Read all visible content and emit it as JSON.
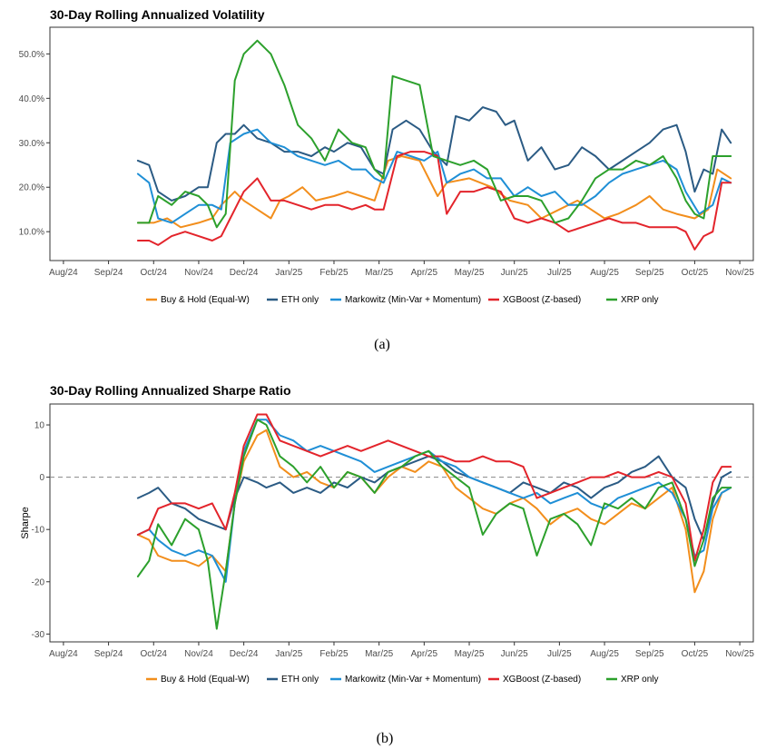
{
  "colors": {
    "buy_hold": "#f28e1c",
    "eth": "#2b5b84",
    "markowitz": "#1f8fd6",
    "xgboost": "#e3242b",
    "xrp": "#2ca02c"
  },
  "legend": [
    "Buy & Hold (Equal-W)",
    "ETH only",
    "Markowitz (Min-Var + Momentum)",
    "XGBoost (Z-based)",
    "XRP only"
  ],
  "x_months": [
    "Aug/24",
    "Sep/24",
    "Oct/24",
    "Nov/24",
    "Dec/24",
    "Jan/25",
    "Feb/25",
    "Mar/25",
    "Apr/25",
    "May/25",
    "Jun/25",
    "Jul/25",
    "Aug/25",
    "Sep/25",
    "Oct/25",
    "Nov/25"
  ],
  "chart_data": [
    {
      "type": "line",
      "title": "30-Day Rolling Annualized Volatility",
      "panel_label": "(a)",
      "xlabel": "",
      "ylabel": "",
      "xlim": [
        -0.3,
        15.3
      ],
      "ylim": [
        3.5,
        56
      ],
      "yticks": [
        10,
        20,
        30,
        40,
        50
      ],
      "ytick_labels": [
        "10.0%",
        "20.0%",
        "30.0%",
        "40.0%",
        "50.0%"
      ],
      "series": [
        {
          "name": "Buy & Hold (Equal-W)",
          "color_key": "buy_hold",
          "x": [
            1.65,
            2.0,
            2.3,
            2.6,
            3.0,
            3.3,
            3.5,
            3.8,
            4.0,
            4.3,
            4.6,
            4.8,
            5.0,
            5.3,
            5.6,
            6.0,
            6.3,
            6.6,
            6.9,
            7.2,
            7.5,
            7.9,
            8.3,
            8.5,
            9.0,
            9.5,
            9.9,
            10.3,
            10.6,
            11.0,
            11.4,
            11.7,
            12.0,
            12.3,
            12.7,
            13.0,
            13.3,
            13.6,
            14.0,
            14.3,
            14.5,
            14.8
          ],
          "y": [
            12,
            12,
            13,
            11,
            12,
            13,
            16,
            19,
            17,
            15,
            13,
            17,
            18,
            20,
            17,
            18,
            19,
            18,
            17,
            26,
            27,
            26,
            18,
            21,
            22,
            20,
            17,
            16,
            13,
            15,
            17,
            15,
            13,
            14,
            16,
            18,
            15,
            14,
            13,
            15,
            24,
            22
          ]
        },
        {
          "name": "ETH only",
          "color_key": "eth",
          "x": [
            1.65,
            1.9,
            2.1,
            2.4,
            2.7,
            3.0,
            3.2,
            3.4,
            3.6,
            3.8,
            4.0,
            4.3,
            4.6,
            4.9,
            5.2,
            5.5,
            5.8,
            6.0,
            6.3,
            6.6,
            6.9,
            7.1,
            7.3,
            7.6,
            7.9,
            8.2,
            8.5,
            8.7,
            9.0,
            9.3,
            9.6,
            9.8,
            10.0,
            10.3,
            10.6,
            10.9,
            11.2,
            11.5,
            11.8,
            12.1,
            12.4,
            12.7,
            13.0,
            13.3,
            13.6,
            13.8,
            14.0,
            14.2,
            14.4,
            14.6,
            14.8
          ],
          "y": [
            26,
            25,
            19,
            17,
            18,
            20,
            20,
            30,
            32,
            32,
            34,
            31,
            30,
            28,
            28,
            27,
            29,
            28,
            30,
            29,
            24,
            23,
            33,
            35,
            33,
            28,
            25,
            36,
            35,
            38,
            37,
            34,
            35,
            26,
            29,
            24,
            25,
            29,
            27,
            24,
            26,
            28,
            30,
            33,
            34,
            28,
            19,
            24,
            23,
            33,
            30
          ]
        },
        {
          "name": "Markowitz (Min-Var + Momentum)",
          "color_key": "markowitz",
          "x": [
            1.65,
            1.9,
            2.1,
            2.4,
            2.7,
            3.0,
            3.3,
            3.5,
            3.7,
            4.0,
            4.3,
            4.6,
            4.9,
            5.2,
            5.5,
            5.8,
            6.1,
            6.4,
            6.7,
            6.9,
            7.1,
            7.4,
            7.7,
            8.0,
            8.3,
            8.5,
            8.8,
            9.1,
            9.4,
            9.7,
            10.0,
            10.3,
            10.6,
            10.9,
            11.2,
            11.5,
            11.8,
            12.1,
            12.4,
            12.7,
            13.0,
            13.3,
            13.6,
            13.8,
            14.1,
            14.4,
            14.6,
            14.8
          ],
          "y": [
            23,
            21,
            13,
            12,
            14,
            16,
            16,
            15,
            30,
            32,
            33,
            30,
            29,
            27,
            26,
            25,
            26,
            24,
            24,
            22,
            21,
            28,
            27,
            26,
            28,
            21,
            23,
            24,
            22,
            22,
            18,
            20,
            18,
            19,
            16,
            16,
            18,
            21,
            23,
            24,
            25,
            26,
            24,
            19,
            14,
            16,
            22,
            21
          ]
        },
        {
          "name": "XGBoost (Z-based)",
          "color_key": "xgboost",
          "x": [
            1.65,
            1.9,
            2.1,
            2.4,
            2.7,
            3.0,
            3.3,
            3.5,
            3.7,
            4.0,
            4.3,
            4.6,
            4.9,
            5.2,
            5.5,
            5.8,
            6.1,
            6.4,
            6.7,
            6.9,
            7.1,
            7.4,
            7.7,
            8.0,
            8.3,
            8.5,
            8.8,
            9.1,
            9.4,
            9.7,
            10.0,
            10.3,
            10.6,
            10.9,
            11.2,
            11.5,
            11.8,
            12.1,
            12.4,
            12.7,
            13.0,
            13.3,
            13.6,
            13.8,
            14.0,
            14.2,
            14.4,
            14.6,
            14.8
          ],
          "y": [
            8,
            8,
            7,
            9,
            10,
            9,
            8,
            9,
            13,
            19,
            22,
            17,
            17,
            16,
            15,
            16,
            16,
            15,
            16,
            15,
            15,
            27,
            28,
            28,
            27,
            14,
            19,
            19,
            20,
            19,
            13,
            12,
            13,
            12,
            10,
            11,
            12,
            13,
            12,
            12,
            11,
            11,
            11,
            10,
            6,
            9,
            10,
            21,
            21
          ]
        },
        {
          "name": "XRP only",
          "color_key": "xrp",
          "x": [
            1.65,
            1.9,
            2.1,
            2.4,
            2.7,
            3.0,
            3.2,
            3.4,
            3.6,
            3.8,
            4.0,
            4.3,
            4.6,
            4.9,
            5.2,
            5.5,
            5.8,
            6.1,
            6.4,
            6.7,
            6.9,
            7.1,
            7.3,
            7.6,
            7.9,
            8.2,
            8.5,
            8.8,
            9.1,
            9.4,
            9.7,
            10.0,
            10.3,
            10.6,
            10.9,
            11.2,
            11.5,
            11.8,
            12.1,
            12.4,
            12.7,
            13.0,
            13.3,
            13.6,
            13.8,
            14.0,
            14.2,
            14.4,
            14.6,
            14.8
          ],
          "y": [
            12,
            12,
            18,
            16,
            19,
            18,
            16,
            11,
            14,
            44,
            50,
            53,
            50,
            43,
            34,
            31,
            26,
            33,
            30,
            29,
            24,
            22,
            45,
            44,
            43,
            27,
            26,
            25,
            26,
            24,
            17,
            18,
            18,
            17,
            12,
            13,
            17,
            22,
            24,
            24,
            26,
            25,
            27,
            22,
            17,
            14,
            13,
            27,
            27,
            27
          ]
        }
      ]
    },
    {
      "type": "line",
      "title": "30-Day Rolling Annualized Sharpe Ratio",
      "panel_label": "(b)",
      "xlabel": "",
      "ylabel": "Sharpe",
      "xlim": [
        -0.3,
        15.3
      ],
      "ylim": [
        -31.5,
        14
      ],
      "yticks": [
        -30,
        -20,
        -10,
        0,
        10
      ],
      "ytick_labels": [
        "-30",
        "-20",
        "-10",
        "0",
        "10"
      ],
      "reference_line": 0,
      "series": [
        {
          "name": "Buy & Hold (Equal-W)",
          "color_key": "buy_hold",
          "x": [
            1.65,
            1.9,
            2.1,
            2.4,
            2.7,
            3.0,
            3.3,
            3.6,
            3.8,
            4.0,
            4.3,
            4.5,
            4.8,
            5.1,
            5.4,
            5.7,
            6.0,
            6.3,
            6.6,
            6.9,
            7.2,
            7.5,
            7.8,
            8.1,
            8.4,
            8.7,
            9.0,
            9.3,
            9.6,
            9.9,
            10.2,
            10.5,
            10.8,
            11.1,
            11.4,
            11.7,
            12.0,
            12.3,
            12.6,
            12.9,
            13.2,
            13.5,
            13.8,
            14.0,
            14.2,
            14.4,
            14.6,
            14.8
          ],
          "y": [
            -11,
            -12,
            -15,
            -16,
            -16,
            -17,
            -15,
            -18,
            -5,
            3,
            8,
            9,
            2,
            0,
            1,
            -1,
            -2,
            1,
            0,
            -3,
            0,
            2,
            1,
            3,
            2,
            -2,
            -4,
            -6,
            -7,
            -5,
            -4,
            -6,
            -9,
            -7,
            -6,
            -8,
            -9,
            -7,
            -5,
            -6,
            -4,
            -2,
            -10,
            -22,
            -18,
            -8,
            -3,
            -2
          ]
        },
        {
          "name": "ETH only",
          "color_key": "eth",
          "x": [
            1.65,
            1.9,
            2.1,
            2.4,
            2.7,
            3.0,
            3.3,
            3.6,
            3.8,
            4.0,
            4.3,
            4.5,
            4.8,
            5.1,
            5.4,
            5.7,
            6.0,
            6.3,
            6.6,
            6.9,
            7.2,
            7.5,
            7.8,
            8.1,
            8.4,
            8.7,
            9.0,
            9.3,
            9.6,
            9.9,
            10.2,
            10.5,
            10.8,
            11.1,
            11.4,
            11.7,
            12.0,
            12.3,
            12.6,
            12.9,
            13.2,
            13.5,
            13.8,
            14.0,
            14.2,
            14.4,
            14.6,
            14.8
          ],
          "y": [
            -4,
            -3,
            -2,
            -5,
            -6,
            -8,
            -9,
            -10,
            -4,
            0,
            -1,
            -2,
            -1,
            -3,
            -2,
            -3,
            -1,
            -2,
            0,
            -1,
            1,
            2,
            3,
            4,
            3,
            1,
            0,
            -1,
            -2,
            -3,
            -1,
            -2,
            -3,
            -1,
            -2,
            -4,
            -2,
            -1,
            1,
            2,
            4,
            0,
            -2,
            -8,
            -12,
            -5,
            0,
            1
          ]
        },
        {
          "name": "Markowitz (Min-Var + Momentum)",
          "color_key": "markowitz",
          "x": [
            1.65,
            1.9,
            2.1,
            2.4,
            2.7,
            3.0,
            3.3,
            3.6,
            3.8,
            4.0,
            4.3,
            4.5,
            4.8,
            5.1,
            5.4,
            5.7,
            6.0,
            6.3,
            6.6,
            6.9,
            7.2,
            7.5,
            7.8,
            8.1,
            8.4,
            8.7,
            9.0,
            9.3,
            9.6,
            9.9,
            10.2,
            10.5,
            10.8,
            11.1,
            11.4,
            11.7,
            12.0,
            12.3,
            12.6,
            12.9,
            13.2,
            13.5,
            13.8,
            14.0,
            14.2,
            14.4,
            14.6,
            14.8
          ],
          "y": [
            -11,
            -10,
            -12,
            -14,
            -15,
            -14,
            -15,
            -20,
            -5,
            5,
            11,
            11,
            8,
            7,
            5,
            6,
            5,
            4,
            3,
            1,
            2,
            3,
            4,
            5,
            3,
            2,
            0,
            -1,
            -2,
            -3,
            -4,
            -3,
            -5,
            -4,
            -3,
            -5,
            -6,
            -4,
            -3,
            -2,
            -1,
            -3,
            -8,
            -15,
            -14,
            -6,
            -3,
            -2
          ]
        },
        {
          "name": "XGBoost (Z-based)",
          "color_key": "xgboost",
          "x": [
            1.65,
            1.9,
            2.1,
            2.4,
            2.7,
            3.0,
            3.3,
            3.6,
            3.8,
            4.0,
            4.3,
            4.5,
            4.8,
            5.1,
            5.4,
            5.7,
            6.0,
            6.3,
            6.6,
            6.9,
            7.2,
            7.5,
            7.8,
            8.1,
            8.4,
            8.7,
            9.0,
            9.3,
            9.6,
            9.9,
            10.2,
            10.5,
            10.8,
            11.1,
            11.4,
            11.7,
            12.0,
            12.3,
            12.6,
            12.9,
            13.2,
            13.5,
            13.8,
            14.0,
            14.2,
            14.4,
            14.6,
            14.8
          ],
          "y": [
            -11,
            -10,
            -6,
            -5,
            -5,
            -6,
            -5,
            -10,
            -3,
            6,
            12,
            12,
            7,
            6,
            5,
            4,
            5,
            6,
            5,
            6,
            7,
            6,
            5,
            4,
            4,
            3,
            3,
            4,
            3,
            3,
            2,
            -4,
            -3,
            -2,
            -1,
            0,
            0,
            1,
            0,
            0,
            1,
            0,
            -5,
            -16,
            -10,
            -1,
            2,
            2
          ]
        },
        {
          "name": "XRP only",
          "color_key": "xrp",
          "x": [
            1.65,
            1.9,
            2.1,
            2.4,
            2.7,
            3.0,
            3.2,
            3.4,
            3.6,
            3.8,
            4.0,
            4.3,
            4.5,
            4.8,
            5.1,
            5.4,
            5.7,
            6.0,
            6.3,
            6.6,
            6.9,
            7.2,
            7.5,
            7.8,
            8.1,
            8.4,
            8.7,
            9.0,
            9.3,
            9.6,
            9.9,
            10.2,
            10.5,
            10.8,
            11.1,
            11.4,
            11.7,
            12.0,
            12.3,
            12.6,
            12.9,
            13.2,
            13.5,
            13.8,
            14.0,
            14.2,
            14.4,
            14.6,
            14.8
          ],
          "y": [
            -19,
            -16,
            -9,
            -13,
            -8,
            -10,
            -16,
            -29,
            -18,
            -5,
            4,
            11,
            10,
            4,
            2,
            -1,
            2,
            -2,
            1,
            0,
            -3,
            1,
            2,
            4,
            5,
            2,
            0,
            -2,
            -11,
            -7,
            -5,
            -6,
            -15,
            -8,
            -7,
            -9,
            -13,
            -5,
            -6,
            -4,
            -6,
            -2,
            -1,
            -8,
            -17,
            -12,
            -4,
            -2,
            -2
          ]
        }
      ]
    }
  ]
}
